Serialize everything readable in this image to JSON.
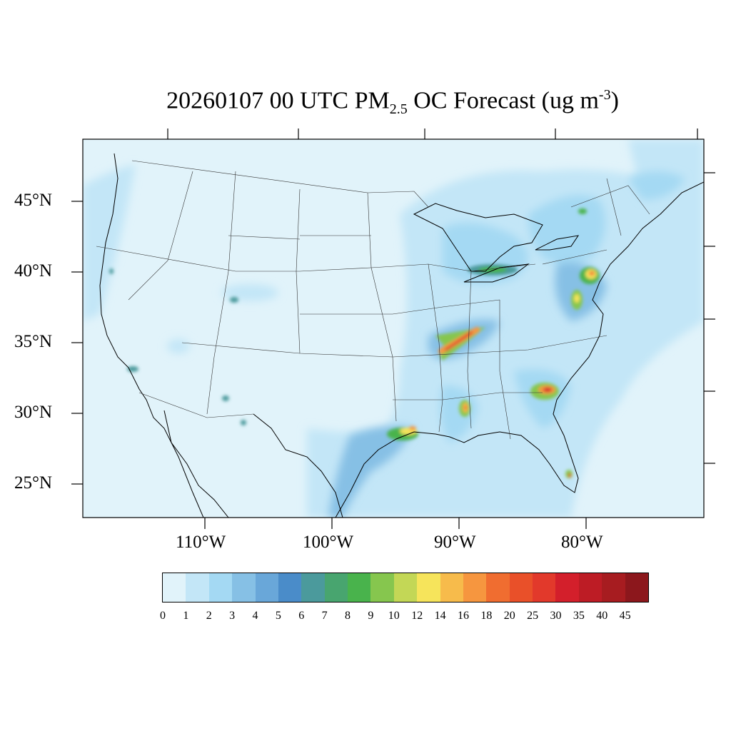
{
  "title": {
    "prefix": "20260107 00 UTC PM",
    "subscript": "2.5",
    "middle": " OC Forecast (ug m",
    "superscript": "-3",
    "suffix": ")"
  },
  "map": {
    "extent": {
      "lon_min": -120,
      "lon_max": -72,
      "lat_min": 22.5,
      "lat_max": 49.5
    },
    "lat_labels": [
      {
        "text": "45°N",
        "lat": 45
      },
      {
        "text": "40°N",
        "lat": 40
      },
      {
        "text": "35°N",
        "lat": 35
      },
      {
        "text": "30°N",
        "lat": 30
      },
      {
        "text": "25°N",
        "lat": 25
      }
    ],
    "lon_labels": [
      {
        "text": "110°W",
        "lon": -110
      },
      {
        "text": "100°W",
        "lon": -100
      },
      {
        "text": "90°W",
        "lon": -90
      },
      {
        "text": "80°W",
        "lon": -80
      }
    ],
    "background_color": "#e1f3fa",
    "hotspots": [
      {
        "region": "Southeast Michigan / Ohio",
        "level": "9-12"
      },
      {
        "region": "New Jersey / Philadelphia",
        "level": "14-25"
      },
      {
        "region": "Chesapeake Bay",
        "level": "10-16"
      },
      {
        "region": "Arkansas / Tennessee",
        "level": "16-30"
      },
      {
        "region": "South Carolina / Georgia",
        "level": "16-30"
      },
      {
        "region": "Mississippi / Louisiana",
        "level": "14-20"
      },
      {
        "region": "East Texas / Louisiana",
        "level": "10-18"
      },
      {
        "region": "South Florida",
        "level": "10-25"
      },
      {
        "region": "Southern California",
        "level": "8-10"
      }
    ]
  },
  "colorbar": {
    "labels": [
      "0",
      "1",
      "2",
      "3",
      "4",
      "5",
      "6",
      "7",
      "8",
      "9",
      "10",
      "12",
      "14",
      "16",
      "18",
      "20",
      "25",
      "30",
      "35",
      "40",
      "45"
    ],
    "colors": [
      "#e1f3fa",
      "#c3e6f7",
      "#a4d9f3",
      "#86c0e5",
      "#69a7d9",
      "#4a8cc9",
      "#4b9a9c",
      "#48a56f",
      "#49b34c",
      "#86c64e",
      "#c3d756",
      "#f6e45b",
      "#f7bb4b",
      "#f6963f",
      "#f06d30",
      "#e95029",
      "#e2392b",
      "#d31f2b",
      "#bd1c25",
      "#a71c20",
      "#8c171c"
    ]
  }
}
